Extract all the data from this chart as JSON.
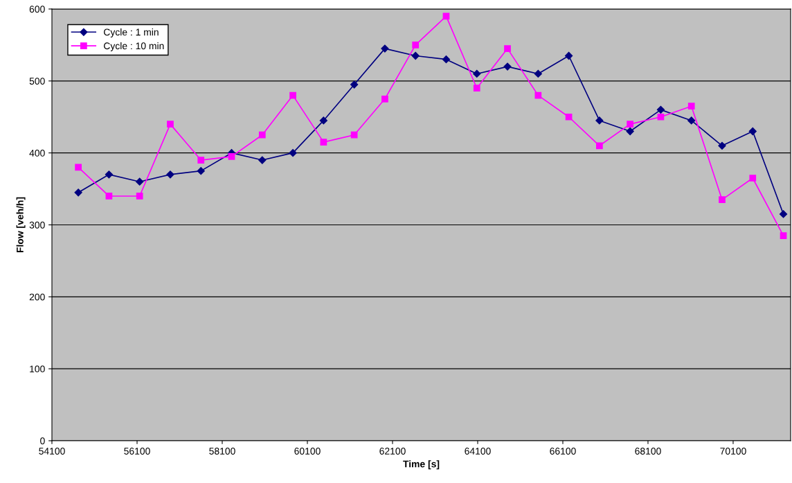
{
  "chart_data": {
    "type": "line",
    "xlabel": "Time [s]",
    "ylabel": "Flow [veh/h]",
    "x": [
      54720,
      55440,
      56160,
      56880,
      57600,
      58320,
      59040,
      59760,
      60480,
      61200,
      61920,
      62640,
      63360,
      64080,
      64800,
      65520,
      66240,
      66960,
      67680,
      68400,
      69120,
      69840,
      70560,
      71280
    ],
    "series": [
      {
        "name": "Cycle : 1 min",
        "color": "#000080",
        "marker": "diamond",
        "values": [
          345,
          370,
          360,
          370,
          375,
          400,
          390,
          400,
          445,
          495,
          545,
          535,
          530,
          510,
          520,
          510,
          535,
          445,
          430,
          460,
          445,
          410,
          430,
          315
        ]
      },
      {
        "name": "Cycle : 10 min",
        "color": "#ff00ff",
        "marker": "square",
        "values": [
          380,
          340,
          340,
          440,
          390,
          395,
          425,
          480,
          415,
          425,
          475,
          550,
          590,
          490,
          545,
          480,
          450,
          410,
          440,
          450,
          465,
          335,
          365,
          285
        ]
      }
    ],
    "xlim": [
      54100,
      71450
    ],
    "xticks": [
      54100,
      56100,
      58100,
      60100,
      62100,
      64100,
      66100,
      68100,
      70100
    ],
    "ylim": [
      0,
      600
    ],
    "yticks": [
      0,
      100,
      200,
      300,
      400,
      500,
      600
    ],
    "grid": "y",
    "legend": "top left"
  }
}
